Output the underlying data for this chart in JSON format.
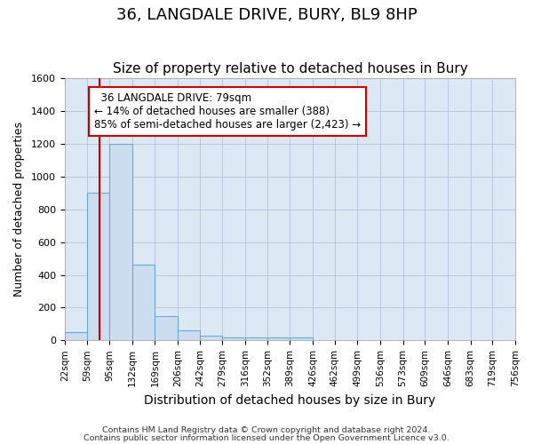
{
  "title1": "36, LANGDALE DRIVE, BURY, BL9 8HP",
  "title2": "Size of property relative to detached houses in Bury",
  "xlabel": "Distribution of detached houses by size in Bury",
  "ylabel": "Number of detached properties",
  "footer1": "Contains HM Land Registry data © Crown copyright and database right 2024.",
  "footer2": "Contains public sector information licensed under the Open Government Licence v3.0.",
  "annotation_line1": "36 LANGDALE DRIVE: 79sqm",
  "annotation_line2": "← 14% of detached houses are smaller (388)",
  "annotation_line3": "85% of semi-detached houses are larger (2,423) →",
  "property_size_sqm": 79,
  "bar_edges": [
    22,
    59,
    95,
    132,
    169,
    206,
    242,
    279,
    316,
    352,
    389,
    426,
    462,
    499,
    536,
    573,
    609,
    646,
    683,
    719,
    756
  ],
  "bar_heights": [
    50,
    900,
    1200,
    460,
    150,
    60,
    30,
    20,
    20,
    20,
    20,
    0,
    0,
    0,
    0,
    0,
    0,
    0,
    0,
    0
  ],
  "bar_color": "#ccddf0",
  "bar_edge_color": "#6aaad4",
  "vline_color": "#cc0000",
  "grid_color": "#b8c8dc",
  "background_color": "#dce8f4",
  "ylim": [
    0,
    1600
  ],
  "yticks": [
    0,
    200,
    400,
    600,
    800,
    1000,
    1200,
    1400,
    1600
  ],
  "annotation_box_edge_color": "#cc0000",
  "title1_fontsize": 13,
  "title2_fontsize": 11,
  "xlabel_fontsize": 10,
  "ylabel_fontsize": 9
}
